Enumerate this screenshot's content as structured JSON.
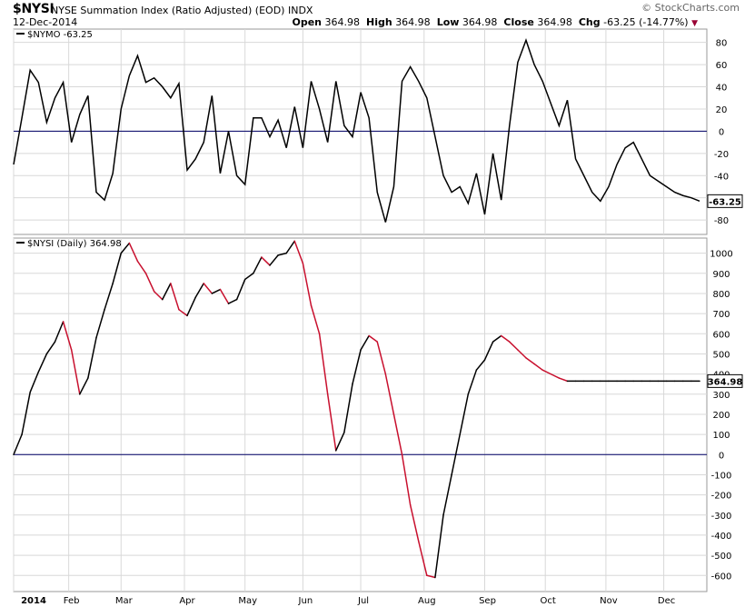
{
  "header": {
    "symbol": "$NYSI",
    "description": "NYSE Summation Index (Ratio Adjusted) (EOD)",
    "exchange": "INDX",
    "date": "12-Dec-2014",
    "brand": "© StockCharts.com",
    "ohlc": {
      "open_label": "Open",
      "open": "364.98",
      "high_label": "High",
      "high": "364.98",
      "low_label": "Low",
      "low": "364.98",
      "close_label": "Close",
      "close": "364.98",
      "chg_label": "Chg",
      "chg": "-63.25 (-14.77%)"
    },
    "colors": {
      "up": "#000000",
      "down": "#c8102e",
      "zero_line": "#000066",
      "grid": "#d8d8d8",
      "chg_marker": "#990033"
    }
  },
  "chart_data": [
    {
      "type": "line",
      "panel": "upper",
      "legend": "$NYMO -63.25",
      "last_value_label": "-63.25",
      "yticks": [
        -80,
        -60,
        -40,
        -20,
        0,
        20,
        40,
        60,
        80
      ],
      "ylim": [
        -93,
        92
      ],
      "grid": true,
      "reference_line": 0,
      "x": [
        0,
        3,
        6,
        9,
        12,
        15,
        18,
        21,
        24,
        27,
        30,
        33,
        36,
        39,
        42,
        45,
        48,
        51,
        54,
        57,
        60,
        63,
        66,
        69,
        72,
        75,
        78,
        81,
        84,
        87,
        90,
        93,
        96,
        99,
        102,
        105,
        108,
        111,
        114,
        117,
        120,
        123,
        126,
        129,
        132,
        135,
        138,
        141,
        144,
        147,
        150,
        153,
        156,
        159,
        162,
        165,
        168,
        171,
        174,
        177,
        180,
        183,
        186,
        189,
        192,
        195,
        198,
        201,
        204,
        207,
        210,
        213,
        216,
        219,
        222,
        225,
        228,
        231,
        234,
        237,
        240,
        243,
        246,
        249
      ],
      "values": [
        -30,
        12,
        55,
        44,
        8,
        30,
        44,
        -10,
        15,
        32,
        -55,
        -62,
        -38,
        20,
        50,
        68,
        44,
        48,
        40,
        30,
        43,
        -35,
        -25,
        -10,
        32,
        -38,
        0,
        -40,
        -48,
        12,
        12,
        -5,
        10,
        -15,
        22,
        -15,
        45,
        20,
        -10,
        45,
        5,
        -5,
        35,
        12,
        -55,
        -82,
        -50,
        45,
        58,
        45,
        30,
        -5,
        -40,
        -55,
        -50,
        -65,
        -38,
        -75,
        -20,
        -62,
        5,
        62,
        82,
        60,
        45,
        25,
        5,
        28,
        -25,
        -40,
        -55,
        -63,
        -50,
        -30,
        -15,
        -10,
        -25,
        -40,
        -45,
        -50,
        -55,
        -58,
        -60,
        -63
      ]
    },
    {
      "type": "line",
      "panel": "lower",
      "legend": "$NYSI (Daily) 364.98",
      "last_value_label": "364.98",
      "yticks": [
        -600,
        -500,
        -400,
        -300,
        -200,
        -100,
        0,
        100,
        200,
        300,
        400,
        500,
        600,
        700,
        800,
        900,
        1000
      ],
      "ylim": [
        -680,
        1075
      ],
      "grid": true,
      "reference_line": 0,
      "x_ticks": [
        "2014",
        "Feb",
        "Mar",
        "Apr",
        "May",
        "Jun",
        "Jul",
        "Aug",
        "Sep",
        "Oct",
        "Nov",
        "Dec"
      ],
      "x_tick_positions": [
        0,
        20,
        39,
        62,
        84,
        105,
        126,
        149,
        171,
        193,
        215,
        236
      ],
      "x": [
        0,
        3,
        6,
        9,
        12,
        15,
        18,
        21,
        24,
        27,
        30,
        33,
        36,
        39,
        42,
        45,
        48,
        51,
        54,
        57,
        60,
        63,
        66,
        69,
        72,
        75,
        78,
        81,
        84,
        87,
        90,
        93,
        96,
        99,
        102,
        105,
        108,
        111,
        114,
        117,
        120,
        123,
        126,
        129,
        132,
        135,
        138,
        141,
        144,
        147,
        150,
        153,
        156,
        159,
        162,
        165,
        168,
        171,
        174,
        177,
        180,
        183,
        186,
        189,
        192,
        195,
        198,
        201,
        204,
        207,
        210,
        213,
        216,
        219,
        222,
        225,
        228,
        231,
        234,
        237,
        240,
        243,
        246,
        249
      ],
      "values": [
        0,
        100,
        310,
        410,
        500,
        560,
        660,
        520,
        300,
        380,
        580,
        720,
        850,
        1000,
        1050,
        960,
        900,
        810,
        770,
        850,
        720,
        690,
        780,
        850,
        800,
        820,
        750,
        770,
        870,
        900,
        980,
        940,
        990,
        1000,
        1060,
        950,
        740,
        600,
        300,
        20,
        110,
        350,
        520,
        590,
        560,
        400,
        200,
        0,
        -250,
        -430,
        -600,
        -610,
        -300,
        -100,
        100,
        300,
        420,
        470,
        560,
        590,
        560,
        520,
        480,
        450,
        420,
        400,
        380,
        365,
        365,
        365,
        365,
        365,
        365,
        365,
        365,
        365,
        365,
        365,
        365,
        365,
        365,
        365,
        365,
        365
      ]
    }
  ]
}
